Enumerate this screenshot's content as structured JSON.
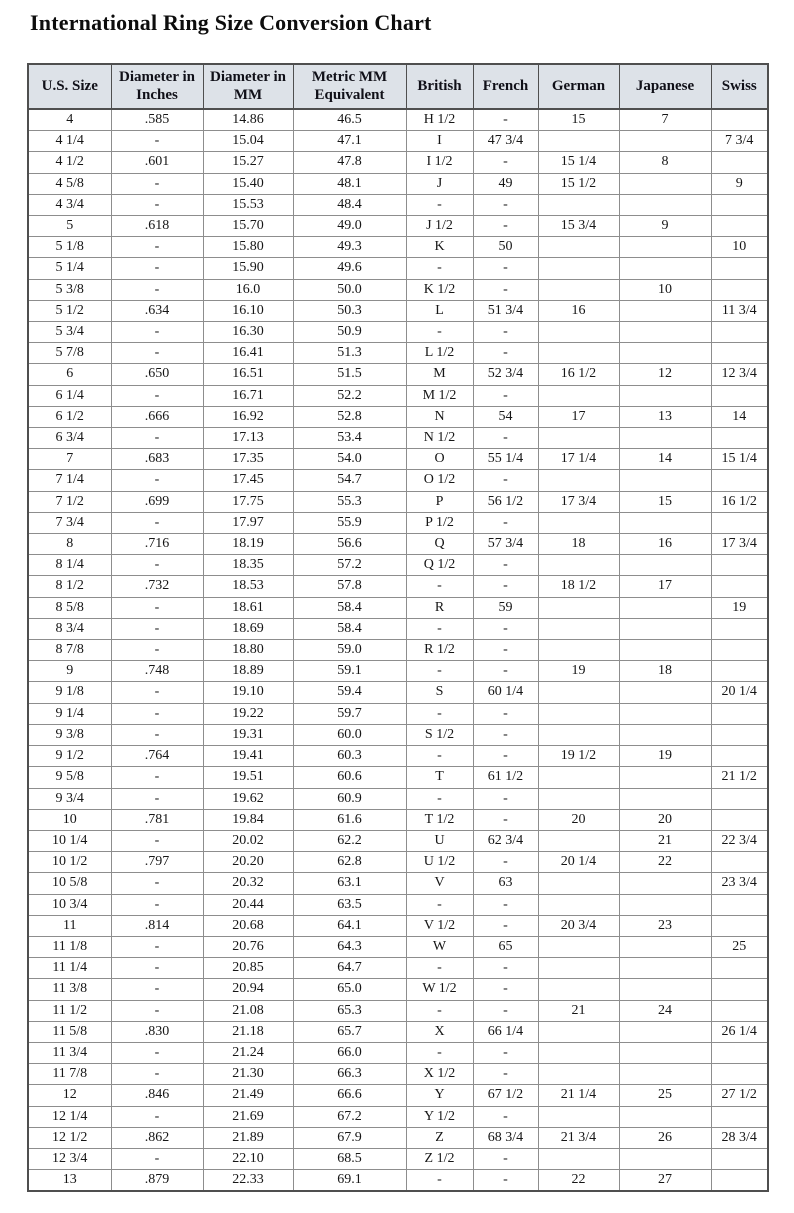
{
  "page": {
    "title": "International Ring Size Conversion Chart"
  },
  "colors": {
    "header_bg": "#dde2e8",
    "outer_border": "#4f4f4f",
    "grid_border": "#8d8d8d",
    "title_text": "#0d0d0d",
    "body_text": "#161616"
  },
  "chart_data": {
    "type": "table",
    "title": "International Ring Size Conversion Chart",
    "columns": [
      "U.S. Size",
      "Diameter in Inches",
      "Diameter in MM",
      "Metric MM Equivalent",
      "British",
      "French",
      "German",
      "Japanese",
      "Swiss"
    ],
    "rows": [
      [
        "4",
        ".585",
        "14.86",
        "46.5",
        "H 1/2",
        "-",
        "15",
        "7",
        ""
      ],
      [
        "4 1/4",
        "-",
        "15.04",
        "47.1",
        "I",
        "47 3/4",
        "",
        "",
        "7 3/4"
      ],
      [
        "4 1/2",
        ".601",
        "15.27",
        "47.8",
        "I 1/2",
        "-",
        "15 1/4",
        "8",
        ""
      ],
      [
        "4 5/8",
        "-",
        "15.40",
        "48.1",
        "J",
        "49",
        "15 1/2",
        "",
        "9"
      ],
      [
        "4 3/4",
        "-",
        "15.53",
        "48.4",
        "-",
        "-",
        "",
        "",
        ""
      ],
      [
        "5",
        ".618",
        "15.70",
        "49.0",
        "J 1/2",
        "-",
        "15 3/4",
        "9",
        ""
      ],
      [
        "5 1/8",
        "-",
        "15.80",
        "49.3",
        "K",
        "50",
        "",
        "",
        "10"
      ],
      [
        "5 1/4",
        "-",
        "15.90",
        "49.6",
        "-",
        "-",
        "",
        "",
        ""
      ],
      [
        "5 3/8",
        "-",
        "16.0",
        "50.0",
        "K 1/2",
        "-",
        "",
        "10",
        ""
      ],
      [
        "5 1/2",
        ".634",
        "16.10",
        "50.3",
        "L",
        "51 3/4",
        "16",
        "",
        "11 3/4"
      ],
      [
        "5 3/4",
        "-",
        "16.30",
        "50.9",
        "-",
        "-",
        "",
        "",
        ""
      ],
      [
        "5 7/8",
        "-",
        "16.41",
        "51.3",
        "L 1/2",
        "-",
        "",
        "",
        ""
      ],
      [
        "6",
        ".650",
        "16.51",
        "51.5",
        "M",
        "52 3/4",
        "16 1/2",
        "12",
        "12 3/4"
      ],
      [
        "6 1/4",
        "-",
        "16.71",
        "52.2",
        "M 1/2",
        "-",
        "",
        "",
        ""
      ],
      [
        "6 1/2",
        ".666",
        "16.92",
        "52.8",
        "N",
        "54",
        "17",
        "13",
        "14"
      ],
      [
        "6 3/4",
        "-",
        "17.13",
        "53.4",
        "N 1/2",
        "-",
        "",
        "",
        ""
      ],
      [
        "7",
        ".683",
        "17.35",
        "54.0",
        "O",
        "55 1/4",
        "17 1/4",
        "14",
        "15 1/4"
      ],
      [
        "7 1/4",
        "-",
        "17.45",
        "54.7",
        "O 1/2",
        "-",
        "",
        "",
        ""
      ],
      [
        "7 1/2",
        ".699",
        "17.75",
        "55.3",
        "P",
        "56 1/2",
        "17 3/4",
        "15",
        "16 1/2"
      ],
      [
        "7 3/4",
        "-",
        "17.97",
        "55.9",
        "P 1/2",
        "-",
        "",
        "",
        ""
      ],
      [
        "8",
        ".716",
        "18.19",
        "56.6",
        "Q",
        "57 3/4",
        "18",
        "16",
        "17 3/4"
      ],
      [
        "8 1/4",
        "-",
        "18.35",
        "57.2",
        "Q 1/2",
        "-",
        "",
        "",
        ""
      ],
      [
        "8 1/2",
        ".732",
        "18.53",
        "57.8",
        "-",
        "-",
        "18 1/2",
        "17",
        ""
      ],
      [
        "8 5/8",
        "-",
        "18.61",
        "58.4",
        "R",
        "59",
        "",
        "",
        "19"
      ],
      [
        "8 3/4",
        "-",
        "18.69",
        "58.4",
        "-",
        "-",
        "",
        "",
        ""
      ],
      [
        "8 7/8",
        "-",
        "18.80",
        "59.0",
        "R 1/2",
        "-",
        "",
        "",
        ""
      ],
      [
        "9",
        ".748",
        "18.89",
        "59.1",
        "-",
        "-",
        "19",
        "18",
        ""
      ],
      [
        "9 1/8",
        "-",
        "19.10",
        "59.4",
        "S",
        "60 1/4",
        "",
        "",
        "20 1/4"
      ],
      [
        "9 1/4",
        "-",
        "19.22",
        "59.7",
        "-",
        "-",
        "",
        "",
        ""
      ],
      [
        "9 3/8",
        "-",
        "19.31",
        "60.0",
        "S 1/2",
        "-",
        "",
        "",
        ""
      ],
      [
        "9 1/2",
        ".764",
        "19.41",
        "60.3",
        "-",
        "-",
        "19 1/2",
        "19",
        ""
      ],
      [
        "9 5/8",
        "-",
        "19.51",
        "60.6",
        "T",
        "61 1/2",
        "",
        "",
        "21 1/2"
      ],
      [
        "9 3/4",
        "-",
        "19.62",
        "60.9",
        "-",
        "-",
        "",
        "",
        ""
      ],
      [
        "10",
        ".781",
        "19.84",
        "61.6",
        "T 1/2",
        "-",
        "20",
        "20",
        ""
      ],
      [
        "10 1/4",
        "-",
        "20.02",
        "62.2",
        "U",
        "62 3/4",
        "",
        "21",
        "22 3/4"
      ],
      [
        "10 1/2",
        ".797",
        "20.20",
        "62.8",
        "U 1/2",
        "-",
        "20 1/4",
        "22",
        ""
      ],
      [
        "10 5/8",
        "-",
        "20.32",
        "63.1",
        "V",
        "63",
        "",
        "",
        "23 3/4"
      ],
      [
        "10 3/4",
        "-",
        "20.44",
        "63.5",
        "-",
        "-",
        "",
        "",
        ""
      ],
      [
        "11",
        ".814",
        "20.68",
        "64.1",
        "V 1/2",
        "-",
        "20 3/4",
        "23",
        ""
      ],
      [
        "11 1/8",
        "-",
        "20.76",
        "64.3",
        "W",
        "65",
        "",
        "",
        "25"
      ],
      [
        "11 1/4",
        "-",
        "20.85",
        "64.7",
        "-",
        "-",
        "",
        "",
        ""
      ],
      [
        "11 3/8",
        "-",
        "20.94",
        "65.0",
        "W 1/2",
        "-",
        "",
        "",
        ""
      ],
      [
        "11 1/2",
        "-",
        "21.08",
        "65.3",
        "-",
        "-",
        "21",
        "24",
        ""
      ],
      [
        "11 5/8",
        ".830",
        "21.18",
        "65.7",
        "X",
        "66 1/4",
        "",
        "",
        "26 1/4"
      ],
      [
        "11 3/4",
        "-",
        "21.24",
        "66.0",
        "-",
        "-",
        "",
        "",
        ""
      ],
      [
        "11 7/8",
        "-",
        "21.30",
        "66.3",
        "X 1/2",
        "-",
        "",
        "",
        ""
      ],
      [
        "12",
        ".846",
        "21.49",
        "66.6",
        "Y",
        "67 1/2",
        "21 1/4",
        "25",
        "27 1/2"
      ],
      [
        "12 1/4",
        "-",
        "21.69",
        "67.2",
        "Y 1/2",
        "-",
        "",
        "",
        ""
      ],
      [
        "12 1/2",
        ".862",
        "21.89",
        "67.9",
        "Z",
        "68 3/4",
        "21 3/4",
        "26",
        "28 3/4"
      ],
      [
        "12 3/4",
        "-",
        "22.10",
        "68.5",
        "Z 1/2",
        "-",
        "",
        "",
        ""
      ],
      [
        "13",
        ".879",
        "22.33",
        "69.1",
        "-",
        "-",
        "22",
        "27",
        ""
      ]
    ]
  }
}
